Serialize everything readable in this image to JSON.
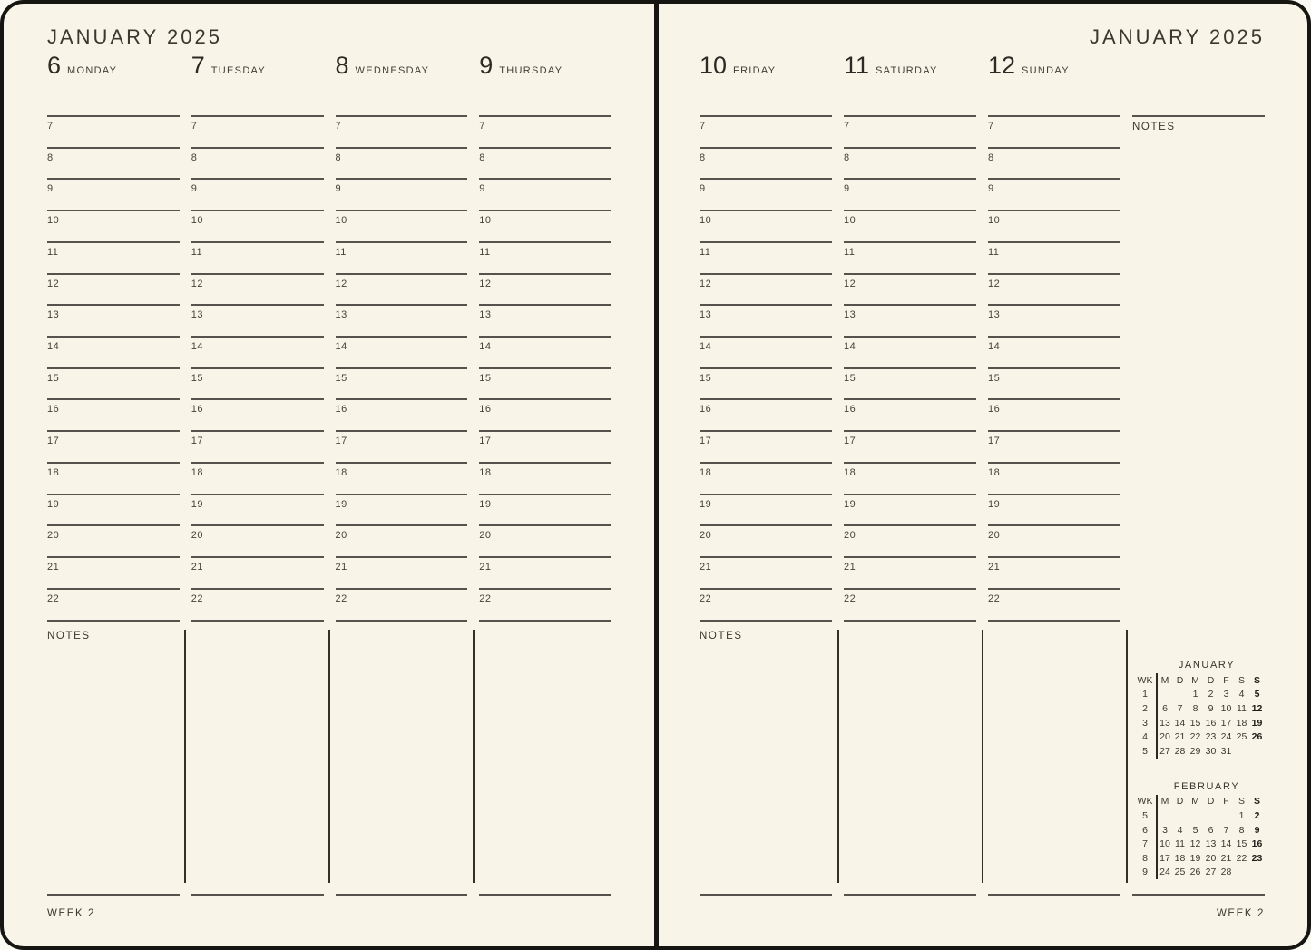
{
  "left_page": {
    "title": "JANUARY 2025",
    "days": [
      {
        "number": "6",
        "name": "MONDAY"
      },
      {
        "number": "7",
        "name": "TUESDAY"
      },
      {
        "number": "8",
        "name": "WEDNESDAY"
      },
      {
        "number": "9",
        "name": "THURSDAY"
      }
    ],
    "notes_label": "NOTES",
    "week_label": "WEEK 2"
  },
  "right_page": {
    "title": "JANUARY 2025",
    "days": [
      {
        "number": "10",
        "name": "FRIDAY"
      },
      {
        "number": "11",
        "name": "SATURDAY"
      },
      {
        "number": "12",
        "name": "SUNDAY"
      }
    ],
    "notes_column_label": "NOTES",
    "notes_label": "NOTES",
    "week_label": "WEEK 2"
  },
  "hours": [
    "7",
    "8",
    "9",
    "10",
    "11",
    "12",
    "13",
    "14",
    "15",
    "16",
    "17",
    "18",
    "19",
    "20",
    "21",
    "22"
  ],
  "mini_calendars": [
    {
      "title": "JANUARY",
      "wk_header": "WK",
      "day_headers": [
        "M",
        "D",
        "M",
        "D",
        "F",
        "S",
        "S"
      ],
      "weeks": [
        {
          "wk": "1",
          "days": [
            "",
            "",
            "1",
            "2",
            "3",
            "4",
            "5"
          ]
        },
        {
          "wk": "2",
          "days": [
            "6",
            "7",
            "8",
            "9",
            "10",
            "11",
            "12"
          ]
        },
        {
          "wk": "3",
          "days": [
            "13",
            "14",
            "15",
            "16",
            "17",
            "18",
            "19"
          ]
        },
        {
          "wk": "4",
          "days": [
            "20",
            "21",
            "22",
            "23",
            "24",
            "25",
            "26"
          ]
        },
        {
          "wk": "5",
          "days": [
            "27",
            "28",
            "29",
            "30",
            "31",
            "",
            ""
          ]
        }
      ]
    },
    {
      "title": "FEBRUARY",
      "wk_header": "WK",
      "day_headers": [
        "M",
        "D",
        "M",
        "D",
        "F",
        "S",
        "S"
      ],
      "weeks": [
        {
          "wk": "5",
          "days": [
            "",
            "",
            "",
            "",
            "",
            "1",
            "2"
          ]
        },
        {
          "wk": "6",
          "days": [
            "3",
            "4",
            "5",
            "6",
            "7",
            "8",
            "9"
          ]
        },
        {
          "wk": "7",
          "days": [
            "10",
            "11",
            "12",
            "13",
            "14",
            "15",
            "16"
          ]
        },
        {
          "wk": "8",
          "days": [
            "17",
            "18",
            "19",
            "20",
            "21",
            "22",
            "23"
          ]
        },
        {
          "wk": "9",
          "days": [
            "24",
            "25",
            "26",
            "27",
            "28",
            "",
            ""
          ]
        }
      ]
    }
  ],
  "colors": {
    "paper": "#f8f5e8",
    "ink": "#34322b",
    "line": "#55534b",
    "border": "#171512"
  }
}
